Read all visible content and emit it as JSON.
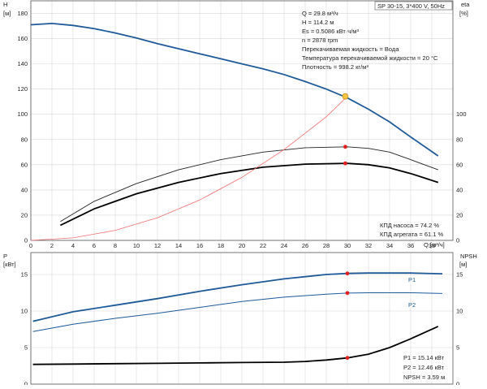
{
  "chart_data": [
    {
      "type": "line",
      "panel": "head-efficiency",
      "title": "SP 30-15, 3*400 V, 50Hz",
      "ylabel_left": "H",
      "ylabel_left_unit": "[м]",
      "ylabel_right": "eta",
      "ylabel_right_unit": "[%]",
      "xlabel": "Q [м³/ч]",
      "xlim": [
        0,
        40
      ],
      "ylim_left": [
        0,
        190
      ],
      "ylim_right_ticks": [
        0,
        20,
        40,
        60,
        80,
        100
      ],
      "xticks": [
        "0",
        "2",
        "4",
        "6",
        "8",
        "10",
        "12",
        "14",
        "16",
        "18",
        "20",
        "22",
        "24",
        "26",
        "28",
        "30",
        "32",
        "34",
        "36",
        "38"
      ],
      "yticks_left": [
        "0",
        "20",
        "40",
        "60",
        "80",
        "100",
        "120",
        "140",
        "160",
        "180"
      ],
      "grid": true,
      "series": [
        {
          "name": "H",
          "color": "#1f5a99",
          "x": [
            0,
            2,
            4,
            6,
            8,
            10,
            12,
            14,
            16,
            18,
            20,
            22,
            24,
            26,
            28,
            30,
            32,
            34,
            36,
            38.6
          ],
          "y": [
            171,
            172,
            170.5,
            168,
            164.5,
            160.5,
            156,
            152,
            148,
            144,
            140,
            136,
            131.5,
            126,
            120,
            113,
            104,
            94,
            82,
            67
          ]
        },
        {
          "name": "КПД насоса",
          "color": "#222222",
          "x": [
            2.8,
            6,
            10,
            14,
            18,
            22,
            26,
            30,
            32,
            34,
            36,
            38.6
          ],
          "y": [
            15,
            31,
            45,
            56,
            64,
            70,
            73.5,
            74.2,
            73,
            70,
            64,
            56
          ]
        },
        {
          "name": "КПД агрегата",
          "color": "#000000",
          "x": [
            2.8,
            6,
            10,
            14,
            18,
            22,
            26,
            30,
            32,
            34,
            36,
            38.6
          ],
          "y": [
            12,
            25,
            37,
            46,
            53,
            58,
            60.5,
            61.1,
            60,
            57.5,
            53,
            46
          ]
        },
        {
          "name": "system-curve",
          "color": "#f07070",
          "x": [
            0,
            4,
            8,
            12,
            16,
            20,
            24,
            28,
            30
          ],
          "y": [
            0,
            2,
            8,
            18,
            32,
            50,
            72,
            98,
            114.2
          ]
        }
      ],
      "operating_point": {
        "Q": 29.8,
        "H": 114.2,
        "eta_pump": 74.2,
        "eta_unit": 61.1
      },
      "annotations": [
        "Q = 29.8 м³/ч",
        "H = 114.2 м",
        "Es = 0.5086 кВт·ч/м³",
        "n = 2878 rpm",
        "Перекачиваемая жидкость = Вода",
        "Температура перекачиваемой жидкости = 20 °C",
        "Плотность = 998.2 кг/м³"
      ],
      "legend_text": [
        "КПД насоса = 74.2 %",
        "КПД агрегата = 61.1 %"
      ]
    },
    {
      "type": "line",
      "panel": "power-npsh",
      "ylabel_left": "P",
      "ylabel_left_unit": "[кВт]",
      "ylabel_right": "NPSH",
      "ylabel_right_unit": "[м]",
      "xlim": [
        0,
        40
      ],
      "ylim_left": [
        0,
        18
      ],
      "yticks_left": [
        "0",
        "5",
        "10",
        "15"
      ],
      "yticks_right": [
        "0",
        "5",
        "10",
        "15"
      ],
      "grid": true,
      "series": [
        {
          "name": "P1",
          "color": "#1f5a99",
          "x": [
            0.2,
            4,
            8,
            12,
            16,
            20,
            24,
            28,
            30,
            32,
            36,
            39
          ],
          "y": [
            8.6,
            9.9,
            10.8,
            11.7,
            12.7,
            13.6,
            14.4,
            15.0,
            15.14,
            15.2,
            15.2,
            15.1
          ]
        },
        {
          "name": "P2",
          "color": "#1f5a99",
          "x": [
            0.2,
            4,
            8,
            12,
            16,
            20,
            24,
            28,
            30,
            32,
            36,
            39
          ],
          "y": [
            7.2,
            8.2,
            9.0,
            9.7,
            10.5,
            11.3,
            11.9,
            12.3,
            12.46,
            12.5,
            12.5,
            12.4
          ]
        },
        {
          "name": "NPSH",
          "color": "#000000",
          "x": [
            0.2,
            4,
            8,
            12,
            16,
            20,
            24,
            26,
            28,
            30,
            32,
            34,
            36,
            38.6
          ],
          "y": [
            2.7,
            2.75,
            2.8,
            2.85,
            2.9,
            2.95,
            3.0,
            3.1,
            3.3,
            3.59,
            4.1,
            5.0,
            6.2,
            7.9
          ]
        }
      ],
      "series_labels": [
        "P1",
        "P2"
      ],
      "legend_text": [
        "P1 = 15.14 кВт",
        "P2 = 12.46 кВт",
        "NPSH = 3.59 м"
      ]
    }
  ]
}
